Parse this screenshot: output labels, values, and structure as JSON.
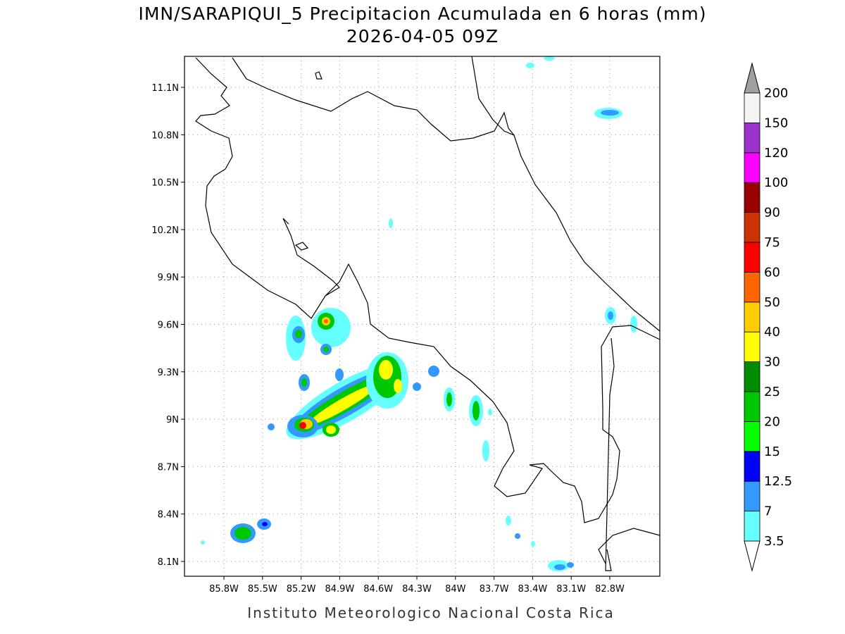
{
  "title": "IMN/SARAPIQUI_5 Precipitacion Acumulada en 6 horas (mm)",
  "subtitle": "2026-04-05 09Z",
  "lat_ticks": [
    "11.1N",
    "10.8N",
    "10.5N",
    "10.2N",
    "9.9N",
    "9.6N",
    "9.3N",
    "9N",
    "8.7N",
    "8.4N",
    "8.1N"
  ],
  "lon_ticks": [
    "85.8W",
    "85.5W",
    "85.2W",
    "84.9W",
    "84.6W",
    "84.3W",
    "84W",
    "83.7W",
    "83.4W",
    "83.1W",
    "82.8W"
  ],
  "colorbar": {
    "levels": [
      3.5,
      7,
      12.5,
      15,
      20,
      25,
      30,
      40,
      50,
      60,
      75,
      90,
      100,
      120,
      150,
      200
    ],
    "colors": [
      "#66ffff",
      "#3399ff",
      "#0000ff",
      "#00ff00",
      "#00c800",
      "#008c00",
      "#ffff00",
      "#ffcc00",
      "#ff6600",
      "#ff0000",
      "#cc3300",
      "#990000",
      "#ff00ff",
      "#9933cc",
      "#f5f5f5"
    ],
    "under_color": "#ffffff",
    "over_color": "#a0a0a0"
  },
  "footer": "Instituto Meteorologico Nacional Costa Rica"
}
